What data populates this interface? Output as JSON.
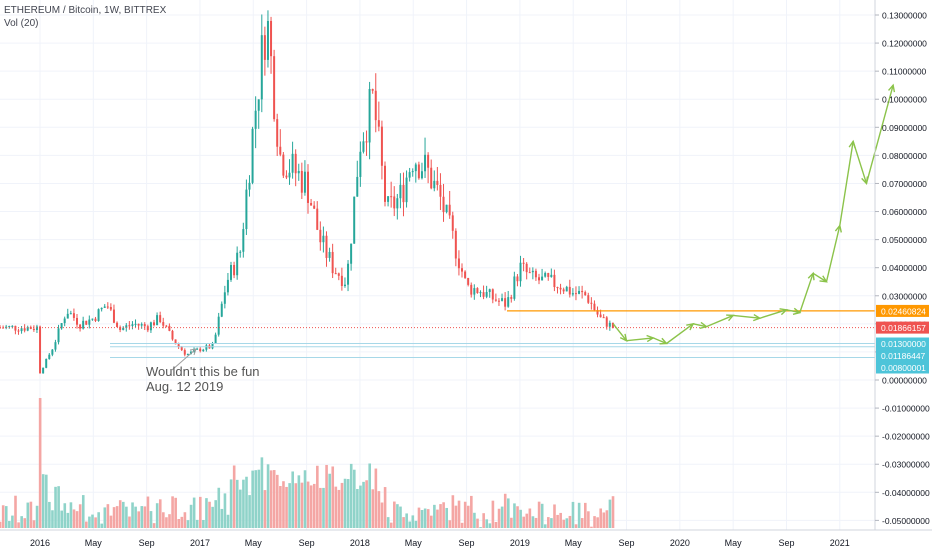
{
  "legend": {
    "symbol": "ETHEREUM / Bitcoin, 1W, BITTREX",
    "volume": "Vol (20)"
  },
  "annotation": {
    "line1": "Wouldn't this be fun",
    "line2": "Aug. 12 2019"
  },
  "colors": {
    "up": "#26a69a",
    "down": "#ef5350",
    "vol_up": "#8fd3c9",
    "vol_down": "#f4a6a4",
    "resistance": "#ff9800",
    "support": "#a7d8e8",
    "projection": "#8bc34a",
    "current": "#ef5350"
  },
  "chart_data": {
    "type": "candlestick",
    "x_axis": {
      "ticks": [
        "2016",
        "May",
        "Sep",
        "2017",
        "May",
        "Sep",
        "2018",
        "May",
        "Sep",
        "2019",
        "May",
        "Sep",
        "2020",
        "May",
        "Sep",
        "2021"
      ]
    },
    "y_axis": {
      "range": [
        -0.055,
        0.135
      ],
      "ticks": [
        "0.13000000",
        "0.12000000",
        "0.11000000",
        "0.10000000",
        "0.09000000",
        "0.08000000",
        "0.07000000",
        "0.06000000",
        "0.05000000",
        "0.04000000",
        "0.03000000",
        "0.02000000",
        "0.01000000",
        "0.00000000",
        "-0.01000000",
        "-0.02000000",
        "-0.03000000",
        "-0.04000000",
        "-0.05000000"
      ]
    },
    "price_labels": [
      {
        "name": "resistance",
        "value": 0.02460824,
        "text": "0.02460824"
      },
      {
        "name": "current",
        "value": 0.01866157,
        "text": "0.01866157"
      },
      {
        "name": "support-1",
        "value": 0.013,
        "text": "0.01300000"
      },
      {
        "name": "support-2",
        "value": 0.01186447,
        "text": "0.01186447"
      },
      {
        "name": "support-3",
        "value": 0.00800001,
        "text": "0.00800001"
      }
    ],
    "series": [
      {
        "name": "price",
        "points": [
          [
            "2016-01",
            0.0025
          ],
          [
            "2016-02",
            0.012
          ],
          [
            "2016-03",
            0.025
          ],
          [
            "2016-04",
            0.02
          ],
          [
            "2016-05",
            0.022
          ],
          [
            "2016-06",
            0.027
          ],
          [
            "2016-07",
            0.018
          ],
          [
            "2016-08",
            0.02
          ],
          [
            "2016-09",
            0.019
          ],
          [
            "2016-10",
            0.022
          ],
          [
            "2016-11",
            0.014
          ],
          [
            "2016-12",
            0.009
          ],
          [
            "2017-01",
            0.011
          ],
          [
            "2017-02",
            0.012
          ],
          [
            "2017-03",
            0.035
          ],
          [
            "2017-04",
            0.045
          ],
          [
            "2017-05",
            0.09
          ],
          [
            "2017-06",
            0.13
          ],
          [
            "2017-07",
            0.08
          ],
          [
            "2017-08",
            0.075
          ],
          [
            "2017-09",
            0.07
          ],
          [
            "2017-10",
            0.05
          ],
          [
            "2017-11",
            0.04
          ],
          [
            "2017-12",
            0.035
          ],
          [
            "2018-01",
            0.085
          ],
          [
            "2018-02",
            0.1
          ],
          [
            "2018-03",
            0.06
          ],
          [
            "2018-04",
            0.065
          ],
          [
            "2018-05",
            0.08
          ],
          [
            "2018-06",
            0.075
          ],
          [
            "2018-07",
            0.065
          ],
          [
            "2018-08",
            0.05
          ],
          [
            "2018-09",
            0.033
          ],
          [
            "2018-10",
            0.032
          ],
          [
            "2018-11",
            0.029
          ],
          [
            "2018-12",
            0.027
          ],
          [
            "2019-01",
            0.04
          ],
          [
            "2019-02",
            0.036
          ],
          [
            "2019-03",
            0.035
          ],
          [
            "2019-04",
            0.034
          ],
          [
            "2019-05",
            0.031
          ],
          [
            "2019-06",
            0.03
          ],
          [
            "2019-07",
            0.022
          ],
          [
            "2019-08",
            0.0187
          ]
        ]
      },
      {
        "name": "projection",
        "points": [
          [
            "2019-08",
            0.02
          ],
          [
            "2019-09",
            0.014
          ],
          [
            "2019-11",
            0.015
          ],
          [
            "2019-12",
            0.013
          ],
          [
            "2020-02",
            0.02
          ],
          [
            "2020-03",
            0.019
          ],
          [
            "2020-05",
            0.023
          ],
          [
            "2020-07",
            0.022
          ],
          [
            "2020-09",
            0.025
          ],
          [
            "2020-10",
            0.024
          ],
          [
            "2020-11",
            0.038
          ],
          [
            "2020-12",
            0.035
          ],
          [
            "2021-01",
            0.055
          ],
          [
            "2021-02",
            0.085
          ],
          [
            "2021-03",
            0.07
          ],
          [
            "2021-05",
            0.105
          ]
        ]
      }
    ]
  }
}
